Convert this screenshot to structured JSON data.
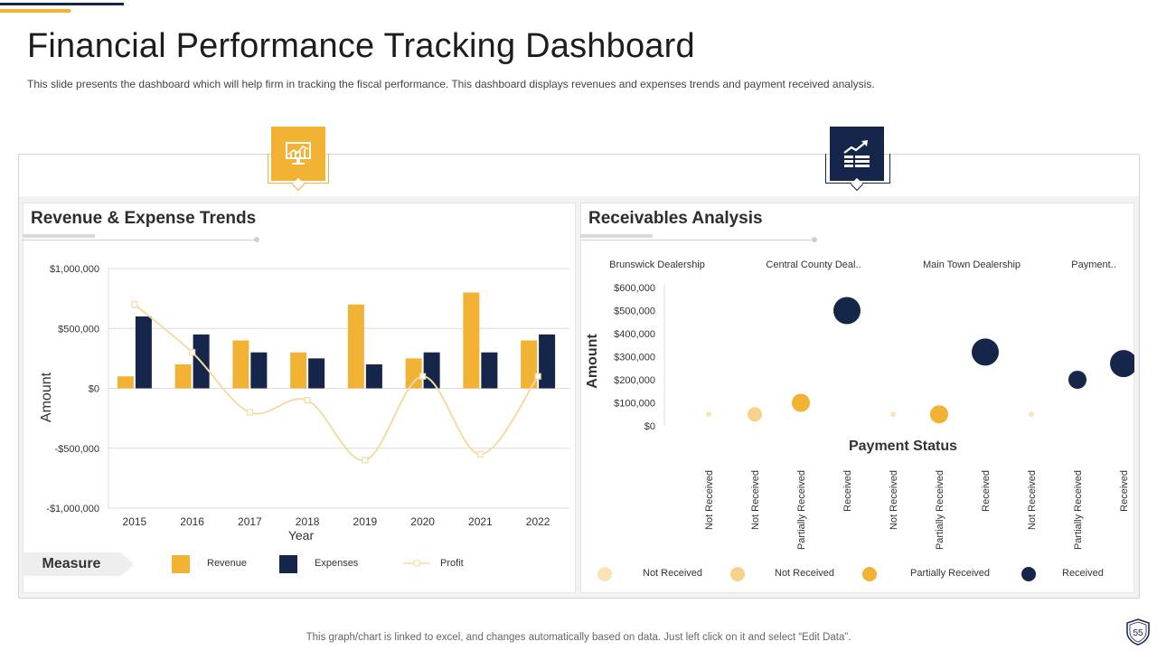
{
  "header": {
    "title": "Financial Performance Tracking Dashboard",
    "subtitle": "This slide presents the dashboard which will help firm in tracking the fiscal performance. This dashboard displays revenues and expenses trends and payment received analysis."
  },
  "left_panel": {
    "title": "Revenue & Expense Trends"
  },
  "right_panel": {
    "title": "Receivables Analysis"
  },
  "legend_left": {
    "label": "Measure",
    "items": [
      "Revenue",
      "Expenses",
      "Profit"
    ]
  },
  "legend_right": {
    "items": [
      "Not Received",
      "Not Received",
      "Partially Received",
      "Received"
    ]
  },
  "colors": {
    "gold": "#f2b233",
    "navy": "#16264a",
    "profit": "#f5dba3",
    "light1": "#fbe3b5",
    "light2": "#f7d28d"
  },
  "footer": {
    "note": "This graph/chart is linked to excel,  and changes automatically based on data. Just left click on it and select “Edit Data”.",
    "page": "55"
  },
  "chart_data": [
    {
      "type": "bar",
      "title": "Revenue & Expense Trends",
      "xlabel": "Year",
      "ylabel": "Amount",
      "ylim": [
        -1000000,
        1000000
      ],
      "ytick_labels": [
        "$1,000,000",
        "$500,000",
        "$0",
        "-$500,000",
        "-$1,000,000"
      ],
      "yticks": [
        1000000,
        500000,
        0,
        -500000,
        -1000000
      ],
      "categories": [
        "2015",
        "2016",
        "2017",
        "2018",
        "2019",
        "2020",
        "2021",
        "2022"
      ],
      "series": [
        {
          "name": "Revenue",
          "type": "bar",
          "values": [
            100000,
            200000,
            400000,
            300000,
            700000,
            250000,
            800000,
            400000
          ]
        },
        {
          "name": "Expenses",
          "type": "bar",
          "values": [
            600000,
            450000,
            300000,
            250000,
            200000,
            300000,
            300000,
            450000
          ]
        },
        {
          "name": "Profit",
          "type": "line",
          "values": [
            700000,
            300000,
            -200000,
            -100000,
            -600000,
            100000,
            -550000,
            100000
          ]
        }
      ]
    },
    {
      "type": "scatter",
      "title": "Receivables Analysis",
      "xlabel": "Payment Status",
      "ylabel": "Amount",
      "ylim": [
        0,
        600000
      ],
      "ytick_labels": [
        "$600,000",
        "$500,000",
        "$400,000",
        "$300,000",
        "$200,000",
        "$100,000",
        "$0"
      ],
      "yticks": [
        600000,
        500000,
        400000,
        300000,
        200000,
        100000,
        0
      ],
      "groups": [
        "Brunswick Dealership",
        "Central County Deal..",
        "Main Town Dealership",
        "Payment.."
      ],
      "points": [
        {
          "group": 0,
          "status": "Not Received",
          "value": 50000,
          "size": 3,
          "color": "light1"
        },
        {
          "group": 1,
          "status": "Not Received",
          "value": 50000,
          "size": 8,
          "color": "light2"
        },
        {
          "group": 1,
          "status": "Partially Received",
          "value": 100000,
          "size": 10,
          "color": "gold"
        },
        {
          "group": 1,
          "status": "Received",
          "value": 500000,
          "size": 15,
          "color": "navy"
        },
        {
          "group": 2,
          "status": "Not Received",
          "value": 50000,
          "size": 3,
          "color": "light1"
        },
        {
          "group": 2,
          "status": "Partially Received",
          "value": 50000,
          "size": 10,
          "color": "gold"
        },
        {
          "group": 2,
          "status": "Received",
          "value": 320000,
          "size": 15,
          "color": "navy"
        },
        {
          "group": 3,
          "status": "Not Received",
          "value": 50000,
          "size": 3,
          "color": "light1"
        },
        {
          "group": 3,
          "status": "Partially Received",
          "value": 200000,
          "size": 10,
          "color": "navy"
        },
        {
          "group": 3,
          "status": "Received",
          "value": 270000,
          "size": 15,
          "color": "navy"
        }
      ]
    }
  ]
}
